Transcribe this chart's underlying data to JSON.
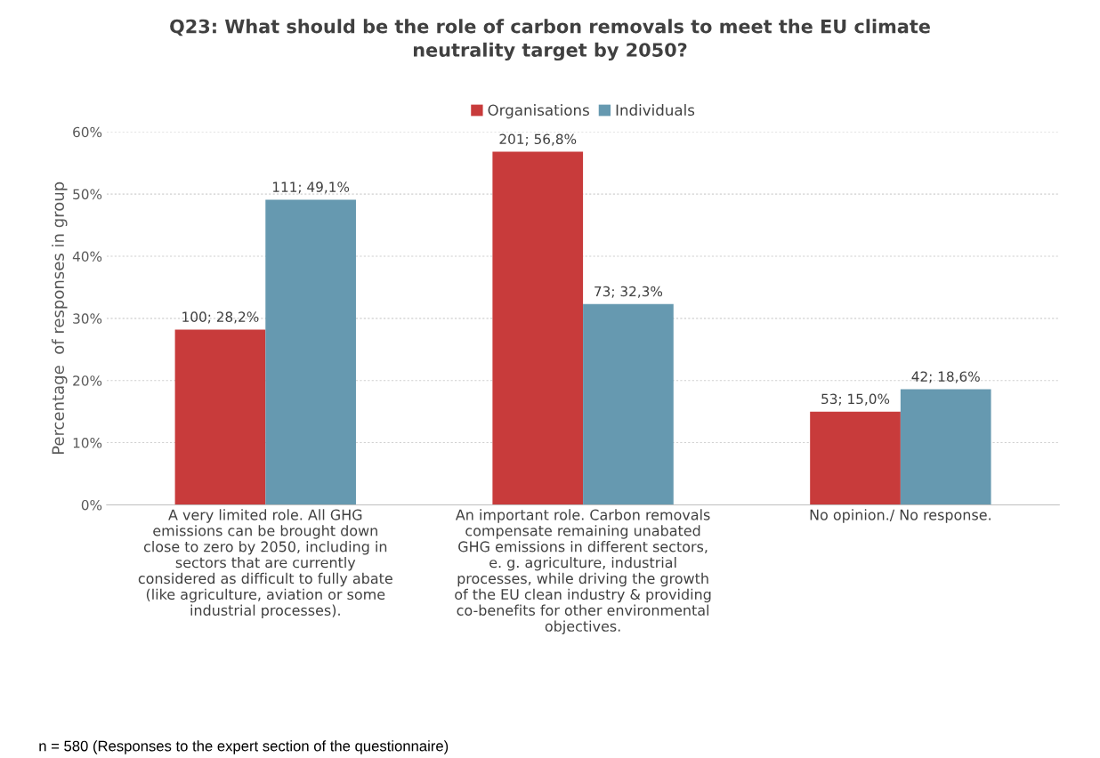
{
  "chart_data": {
    "type": "bar",
    "title": "Q23: What should be the role of carbon removals to meet the EU climate\nneutrality target by 2050?",
    "ylabel": "Percentage  of responses in group",
    "categories": [
      "A very limited role. All GHG\nemissions can be brought down\nclose to zero by 2050, including in\nsectors that are currently\nconsidered as difficult to fully abate\n(like agriculture, aviation or some\nindustrial processes).",
      "An important role. Carbon removals\ncompensate remaining unabated\nGHG emissions in different sectors,\ne. g. agriculture, industrial\nprocesses, while driving the growth\nof the EU clean industry & providing\nco-benefits for other environmental\nobjectives.",
      "No opinion./ No response."
    ],
    "series": [
      {
        "name": "Organisations",
        "color": "#c83b3b",
        "values": [
          28.2,
          56.8,
          15.0
        ],
        "value_labels": [
          "100; 28,2%",
          "201; 56,8%",
          "53; 15,0%"
        ]
      },
      {
        "name": "Individuals",
        "color": "#6699b0",
        "values": [
          49.1,
          32.3,
          18.6
        ],
        "value_labels": [
          "111; 49,1%",
          "73; 32,3%",
          "42; 18,6%"
        ]
      }
    ],
    "ylim": [
      0,
      60
    ],
    "yticks": [
      {
        "value": 0,
        "label": "0%"
      },
      {
        "value": 10,
        "label": "10%"
      },
      {
        "value": 20,
        "label": "20%"
      },
      {
        "value": 30,
        "label": "30%"
      },
      {
        "value": 40,
        "label": "40%"
      },
      {
        "value": 50,
        "label": "50%"
      },
      {
        "value": 60,
        "label": "60%"
      }
    ],
    "grid": "y",
    "legend": "top",
    "annotations": [
      "n = 580 (Responses to the expert section of the questionnaire)"
    ]
  }
}
